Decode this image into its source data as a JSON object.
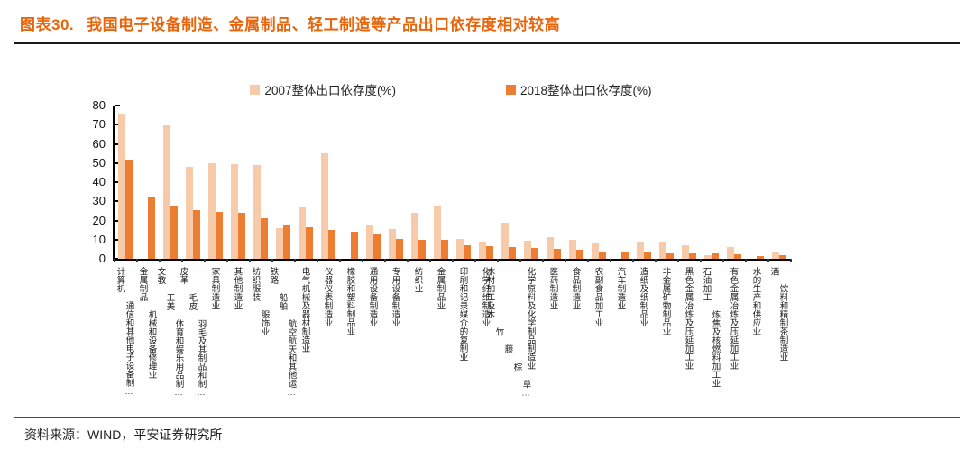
{
  "header": {
    "tag": "图表30.",
    "title": "我国电子设备制造、金属制品、轻工制造等产品出口依存度相对较高",
    "accent_color": "#E8650C"
  },
  "footer": {
    "source": "资料来源：WIND，平安证券研究所"
  },
  "chart_data": {
    "type": "bar",
    "title": "图表30. 我国电子设备制造、金属制品、轻工制造等产品出口依存度相对较高",
    "xlabel": "",
    "ylabel": "",
    "ylim": [
      0,
      80
    ],
    "yticks": [
      0,
      10,
      20,
      30,
      40,
      50,
      60,
      70,
      80
    ],
    "grid": false,
    "legend_position": "top-center",
    "axis_color": "#000000",
    "categories": [
      "计算机 通信和其他电子设备制…",
      "金属制品 机械和设备修理业",
      "文教 工美 体育和娱乐用品制…",
      "皮革 毛皮 羽毛及其制品和制…",
      "家具制造业",
      "其他制造业",
      "纺织服装 服饰业",
      "铁路 船舶 航空航天和其他运…",
      "电气机械及器材制造业",
      "仪器仪表制造业",
      "橡胶和塑料制品业",
      "通用设备制造业",
      "专用设备制造业",
      "纺织业",
      "金属制品业",
      "印刷和记录媒介的复制业",
      "化学纤维制造业",
      "木材加工及木 竹 藤 棕 草…",
      "化学原料及化学制品制造业",
      "医药制造业",
      "食品制造业",
      "农副食品加工业",
      "汽车制造业",
      "造纸及纸制品业",
      "非金属矿物制品业",
      "黑色金属冶炼及压延加工业",
      "石油加工 炼焦及核燃料加工业",
      "有色金属冶炼及压延加工业",
      "水的生产和供应业",
      "酒 饮料和精制茶制造业"
    ],
    "series": [
      {
        "name": "2007整体出口依存度(%)",
        "color": "#F7CBA9",
        "values": [
          76,
          null,
          69.5,
          48,
          50,
          49.5,
          49,
          16,
          27,
          55,
          null,
          17.5,
          15.5,
          24,
          28,
          10.5,
          9,
          19,
          9.5,
          11.5,
          10,
          8.5,
          null,
          9,
          9,
          7,
          2,
          6,
          null,
          3.5
        ]
      },
      {
        "name": "2018整体出口依存度(%)",
        "color": "#ED7D31",
        "values": [
          52,
          32,
          28,
          25.5,
          24.5,
          24,
          21,
          17.5,
          16.5,
          15,
          14,
          13,
          10.5,
          10,
          10,
          7,
          6.5,
          6,
          5.5,
          5,
          4.5,
          4,
          4,
          3.5,
          3,
          2.8,
          2.7,
          2.2,
          1.6,
          1.9
        ]
      }
    ]
  }
}
